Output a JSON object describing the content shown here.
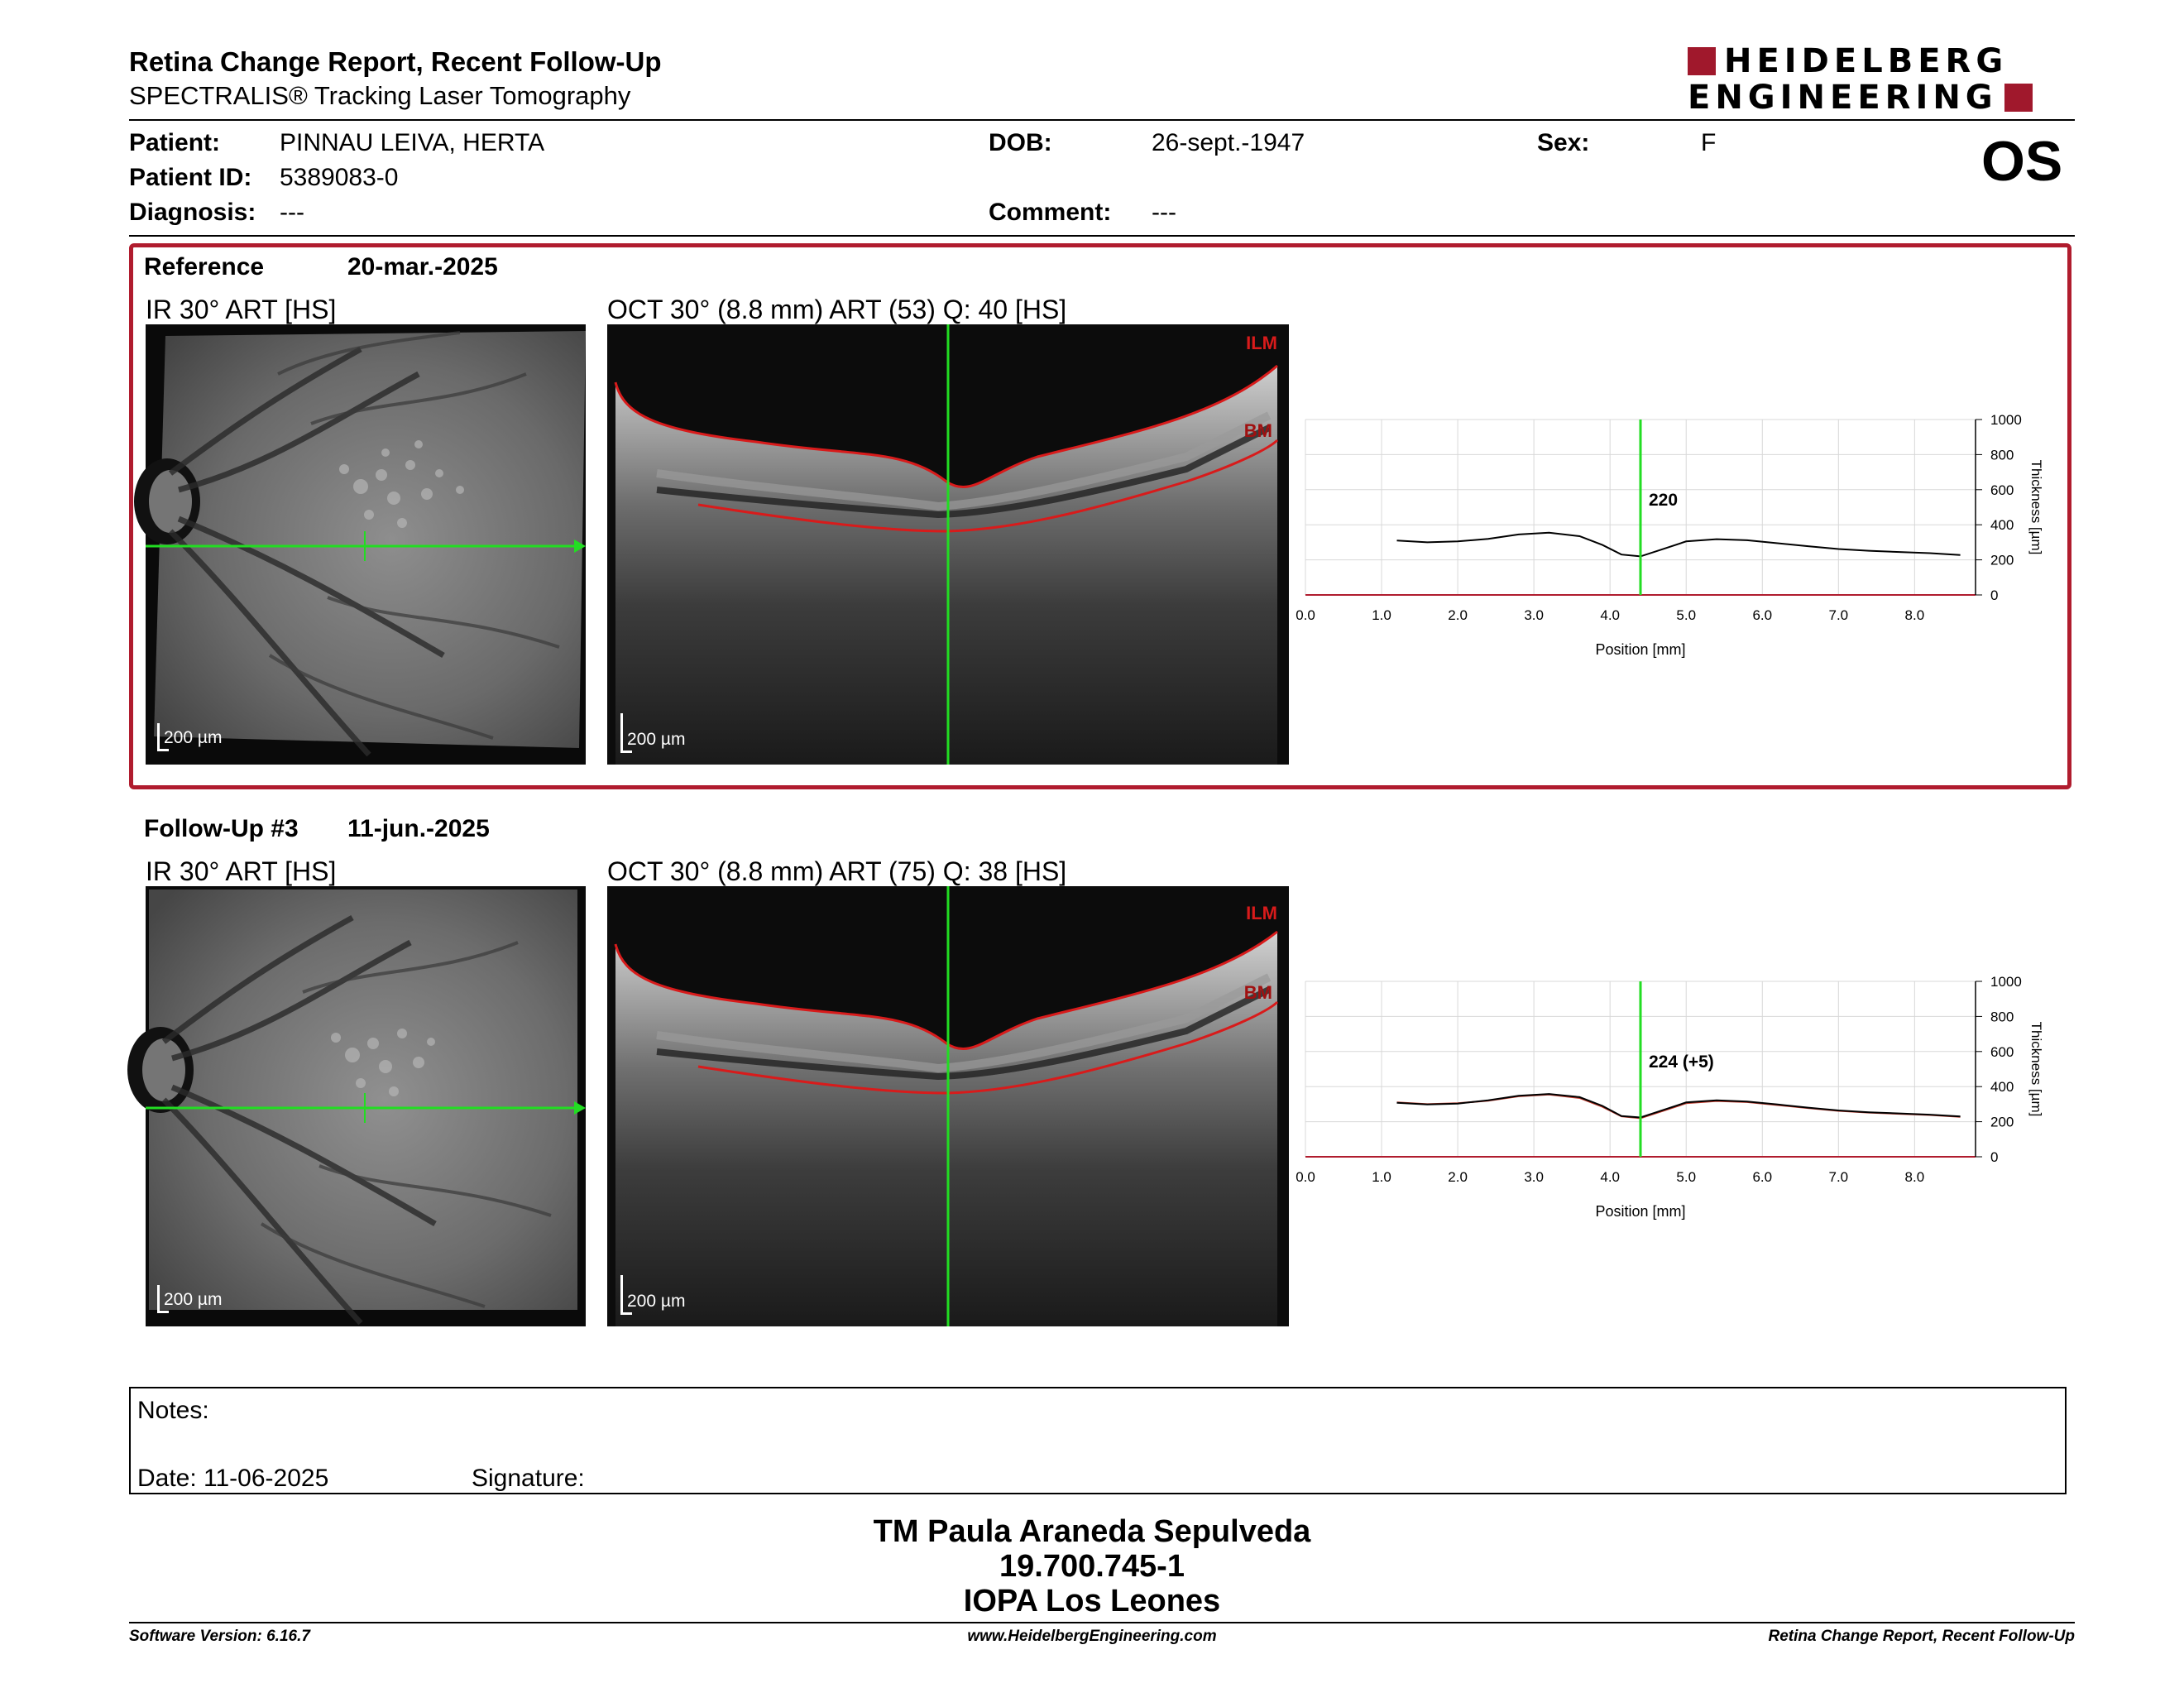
{
  "header": {
    "title": "Retina Change Report, Recent Follow-Up",
    "subtitle": "SPECTRALIS® Tracking Laser Tomography",
    "logo_line1": "HEIDELBERG",
    "logo_line2": "ENGINEERING",
    "eye": "OS"
  },
  "patient": {
    "patient_label": "Patient:",
    "patient_value": "PINNAU LEIVA, HERTA",
    "id_label": "Patient ID:",
    "id_value": "5389083-0",
    "diagnosis_label": "Diagnosis:",
    "diagnosis_value": "---",
    "dob_label": "DOB:",
    "dob_value": "26-sept.-1947",
    "comment_label": "Comment:",
    "comment_value": "---",
    "sex_label": "Sex:",
    "sex_value": "F"
  },
  "reference": {
    "label": "Reference",
    "date": "20-mar.-2025",
    "ir_label": "IR 30° ART [HS]",
    "oct_label": "OCT 30° (8.8 mm) ART (53) Q: 40 [HS]",
    "scale_ir": "200 µm",
    "scale_oct": "200 µm",
    "ilm": "ILM",
    "bm": "BM",
    "chart_label": "220"
  },
  "followup": {
    "label": "Follow-Up #3",
    "date": "11-jun.-2025",
    "ir_label": "IR 30° ART [HS]",
    "oct_label": "OCT 30° (8.8 mm) ART (75) Q: 38 [HS]",
    "scale_ir": "200 µm",
    "scale_oct": "200 µm",
    "ilm": "ILM",
    "bm": "BM",
    "chart_label": "224 (+5)"
  },
  "chart_data": [
    {
      "type": "line",
      "xlabel": "Position [mm]",
      "ylabel": "Thickness [µm]",
      "xlim": [
        0,
        8.8
      ],
      "ylim": [
        0,
        1000
      ],
      "xticks": [
        "0.0",
        "1.0",
        "2.0",
        "3.0",
        "4.0",
        "5.0",
        "6.0",
        "7.0",
        "8.0"
      ],
      "yticks": [
        "0",
        "200",
        "400",
        "600",
        "800",
        "1000"
      ],
      "marker_x": 4.4,
      "marker_label": "220",
      "series": [
        {
          "x": [
            1.2,
            1.6,
            2.0,
            2.4,
            2.8,
            3.2,
            3.6,
            3.9,
            4.15,
            4.4,
            4.65,
            5.0,
            5.4,
            5.8,
            6.2,
            6.6,
            7.0,
            7.4,
            7.8,
            8.2,
            8.6
          ],
          "values": [
            310,
            300,
            305,
            320,
            345,
            355,
            335,
            285,
            230,
            220,
            255,
            305,
            318,
            312,
            295,
            278,
            262,
            252,
            245,
            238,
            228
          ]
        }
      ]
    },
    {
      "type": "line",
      "xlabel": "Position [mm]",
      "ylabel": "Thickness [µm]",
      "xlim": [
        0,
        8.8
      ],
      "ylim": [
        0,
        1000
      ],
      "xticks": [
        "0.0",
        "1.0",
        "2.0",
        "3.0",
        "4.0",
        "5.0",
        "6.0",
        "7.0",
        "8.0"
      ],
      "yticks": [
        "0",
        "200",
        "400",
        "600",
        "800",
        "1000"
      ],
      "marker_x": 4.4,
      "marker_label": "224 (+5)",
      "series": [
        {
          "x": [
            1.2,
            1.6,
            2.0,
            2.4,
            2.8,
            3.2,
            3.6,
            3.9,
            4.15,
            4.4,
            4.65,
            5.0,
            5.4,
            5.8,
            6.2,
            6.6,
            7.0,
            7.4,
            7.8,
            8.2,
            8.6
          ],
          "values": [
            308,
            298,
            303,
            322,
            348,
            358,
            340,
            290,
            232,
            224,
            260,
            310,
            322,
            315,
            298,
            280,
            264,
            254,
            247,
            240,
            230
          ]
        },
        {
          "x": [
            1.2,
            1.6,
            2.0,
            2.4,
            2.8,
            3.2,
            3.6,
            3.9,
            4.15,
            4.4,
            4.65,
            5.0,
            5.4,
            5.8,
            6.2,
            6.6,
            7.0,
            7.4,
            7.8,
            8.2,
            8.6
          ],
          "values": [
            310,
            300,
            305,
            320,
            345,
            355,
            335,
            285,
            230,
            220,
            255,
            305,
            318,
            312,
            295,
            278,
            262,
            252,
            245,
            238,
            228
          ]
        }
      ],
      "colors": [
        "#000000",
        "#c0392b"
      ]
    }
  ],
  "notes": {
    "notes_label": "Notes:",
    "date_label": "Date: 11-06-2025",
    "signature_label": "Signature:"
  },
  "signature": {
    "line1": "TM Paula Araneda Sepulveda",
    "line2": "19.700.745-1",
    "line3": "IOPA Los Leones"
  },
  "footer": {
    "left": "Software Version: 6.16.7",
    "center": "www.HeidelbergEngineering.com",
    "right": "Retina Change Report, Recent Follow-Up"
  },
  "colors": {
    "accent": "#a0182c",
    "scan_line": "#22dd22",
    "layer": "#d81b1b"
  }
}
